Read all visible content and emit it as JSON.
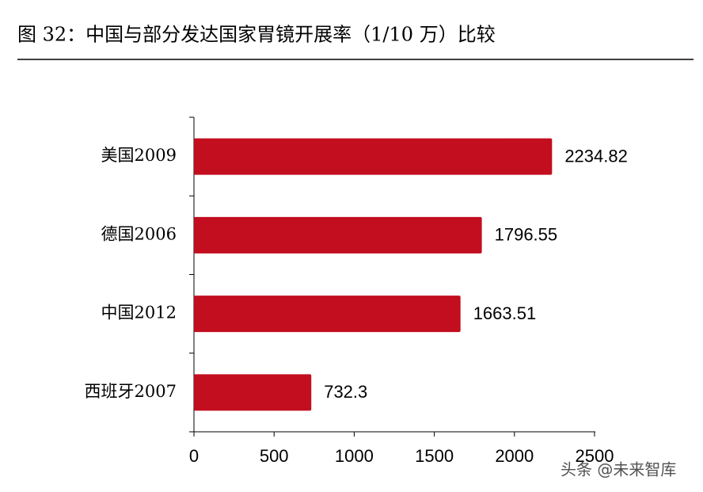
{
  "chart_data": {
    "type": "hbar",
    "title": "图 32：中国与部分发达国家胃镜开展率（1/10 万）比较",
    "categories": [
      "美国2009",
      "德国2006",
      "中国2012",
      "西班牙2007"
    ],
    "values": [
      2234.82,
      1796.55,
      1663.51,
      732.3
    ],
    "color": "#c20e1f",
    "xlim": [
      0,
      2500
    ],
    "xticks": [
      0,
      500,
      1000,
      1500,
      2000,
      2500
    ],
    "watermark": "头条 @未来智库"
  }
}
